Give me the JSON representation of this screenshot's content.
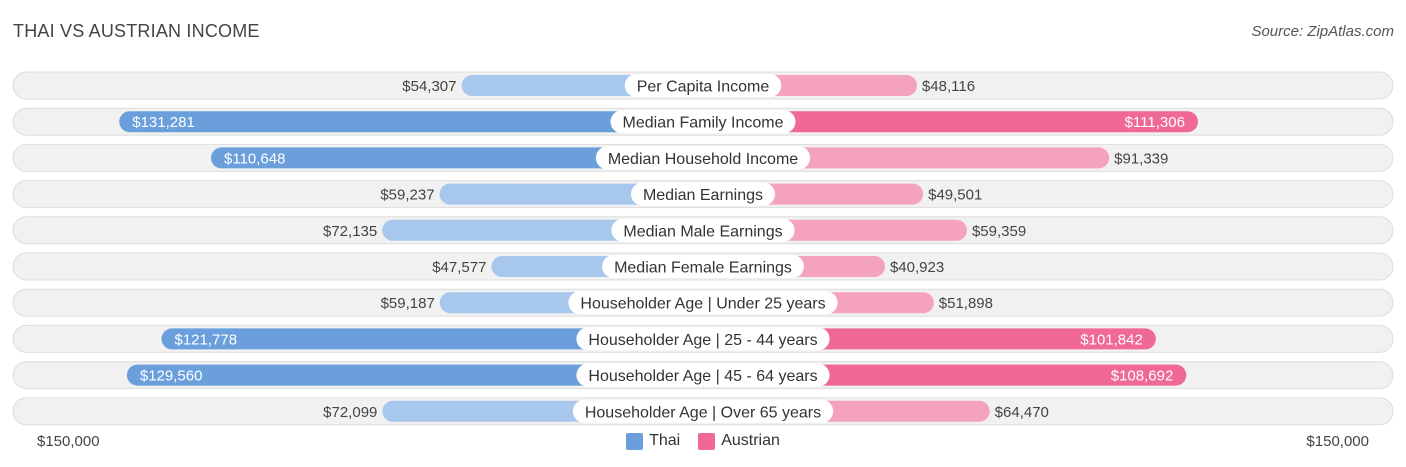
{
  "header": {
    "title": "THAI VS AUSTRIAN INCOME",
    "source": "Source: ZipAtlas.com"
  },
  "colors": {
    "thai_light": "#a7c7ec",
    "thai_dark": "#6a9fdc",
    "austrian_light": "#f5a2bf",
    "austrian_dark": "#f06896",
    "row_bg": "#f1f1f1",
    "row_border": "#dddddd"
  },
  "chart_data": {
    "type": "bar",
    "orientation": "diverging-horizontal",
    "title": "THAI VS AUSTRIAN INCOME",
    "axis_max": 150000,
    "axis_left_label": "$150,000",
    "axis_right_label": "$150,000",
    "legend_position": "bottom-center",
    "categories": [
      "Per Capita Income",
      "Median Family Income",
      "Median Household Income",
      "Median Earnings",
      "Median Male Earnings",
      "Median Female Earnings",
      "Householder Age | Under 25 years",
      "Householder Age | 25 - 44 years",
      "Householder Age | 45 - 64 years",
      "Householder Age | Over 65 years"
    ],
    "series": [
      {
        "name": "Thai",
        "values": [
          54307,
          131281,
          110648,
          59237,
          72135,
          47577,
          59187,
          121778,
          129560,
          72099
        ],
        "labels": [
          "$54,307",
          "$131,281",
          "$110,648",
          "$59,237",
          "$72,135",
          "$47,577",
          "$59,187",
          "$121,778",
          "$129,560",
          "$72,099"
        ]
      },
      {
        "name": "Austrian",
        "values": [
          48116,
          111306,
          91339,
          49501,
          59359,
          40923,
          51898,
          101842,
          108692,
          64470
        ],
        "labels": [
          "$48,116",
          "$111,306",
          "$91,339",
          "$49,501",
          "$59,359",
          "$40,923",
          "$51,898",
          "$101,842",
          "$108,692",
          "$64,470"
        ]
      }
    ]
  }
}
